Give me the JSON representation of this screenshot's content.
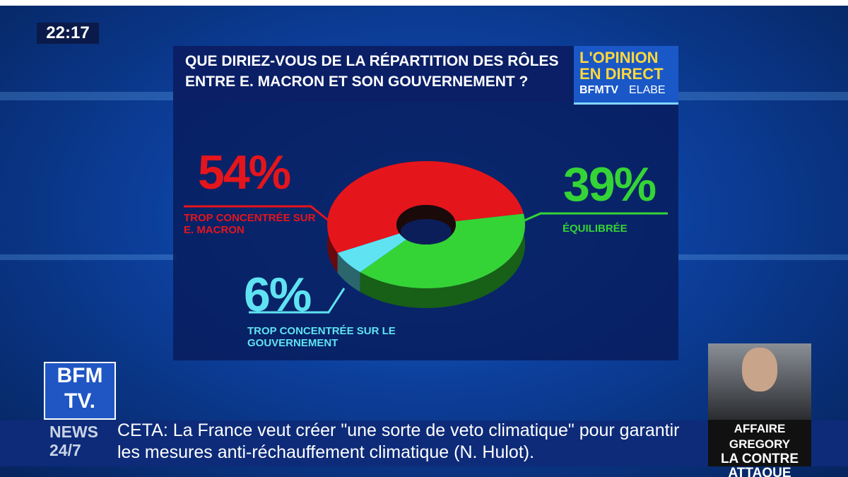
{
  "clock": "22:17",
  "chart_data": {
    "type": "pie",
    "title": "QUE DIRIEZ-VOUS DE LA RÉPARTITION DES RÔLES ENTRE E. MACRON ET SON GOUVERNEMENT ?",
    "categories": [
      "TROP CONCENTRÉE SUR E. MACRON",
      "TROP CONCENTRÉE SUR LE GOUVERNEMENT",
      "ÉQUILIBRÉE"
    ],
    "values": [
      54,
      6,
      39
    ],
    "value_labels": [
      "54%",
      "6%",
      "39%"
    ],
    "colors": [
      "#e5151c",
      "#5fe3f2",
      "#35d436"
    ]
  },
  "badge": {
    "line1": "L'OPINION",
    "line2": "EN DIRECT",
    "brand": "BFMTV",
    "partner": "ELABE"
  },
  "channel_logo": {
    "line1": "BFM",
    "line2": "TV."
  },
  "news_label": {
    "line1": "NEWS",
    "line2": "24/7"
  },
  "ticker": "CETA: La France veut créer \"une sorte de veto climatique\" pour garantir les mesures anti-réchauffement climatique (N. Hulot).",
  "inset": {
    "line1": "AFFAIRE GREGORY",
    "line2": "LA CONTRE ATTAQUE"
  }
}
